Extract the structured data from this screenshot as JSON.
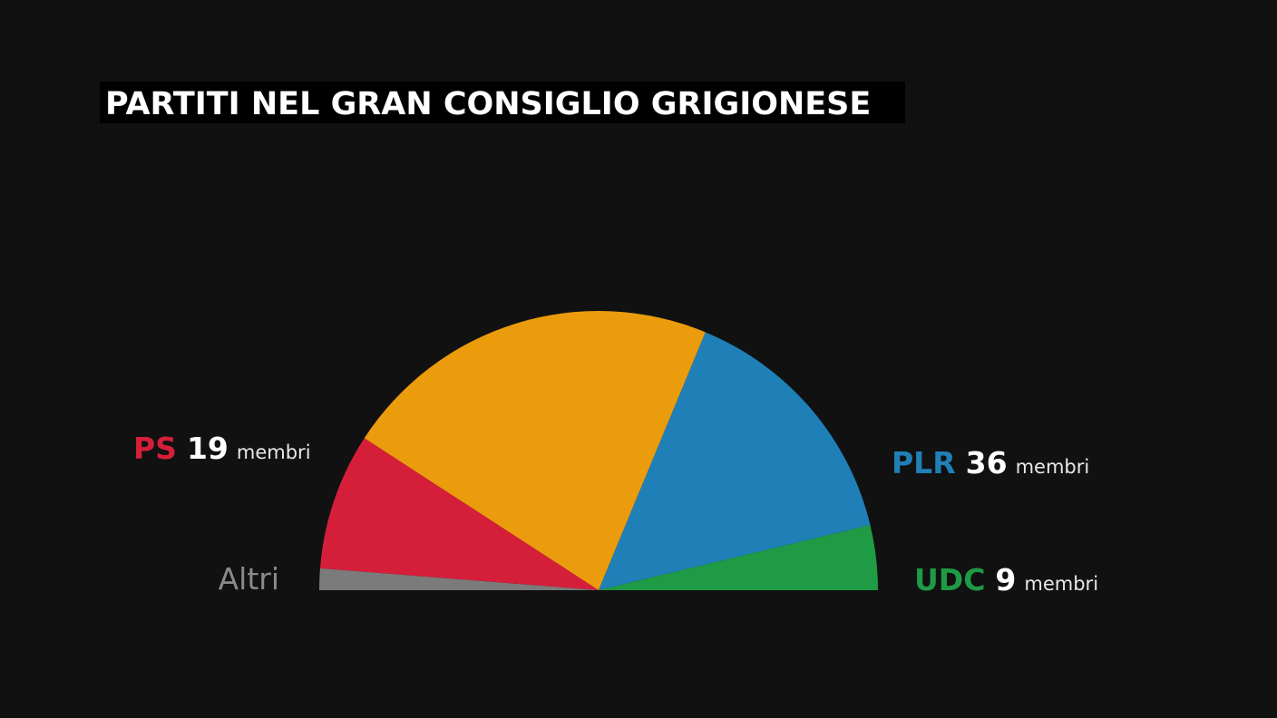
{
  "chart_data": {
    "type": "semicircle",
    "title": "PARTITI NEL GRAN CONSIGLIO GRIGIONESE",
    "categories": [
      "Altri",
      "PS",
      null,
      "PLR",
      "UDC"
    ],
    "values": [
      3,
      19,
      53,
      36,
      9
    ],
    "value_labels": [
      null,
      "19",
      null,
      "36",
      "9"
    ],
    "value_unit": "membri",
    "colors": [
      "#7b7b7b",
      "#d51f3a",
      "#eb9c0c",
      "#1f80b8",
      "#1f9a45"
    ]
  }
}
